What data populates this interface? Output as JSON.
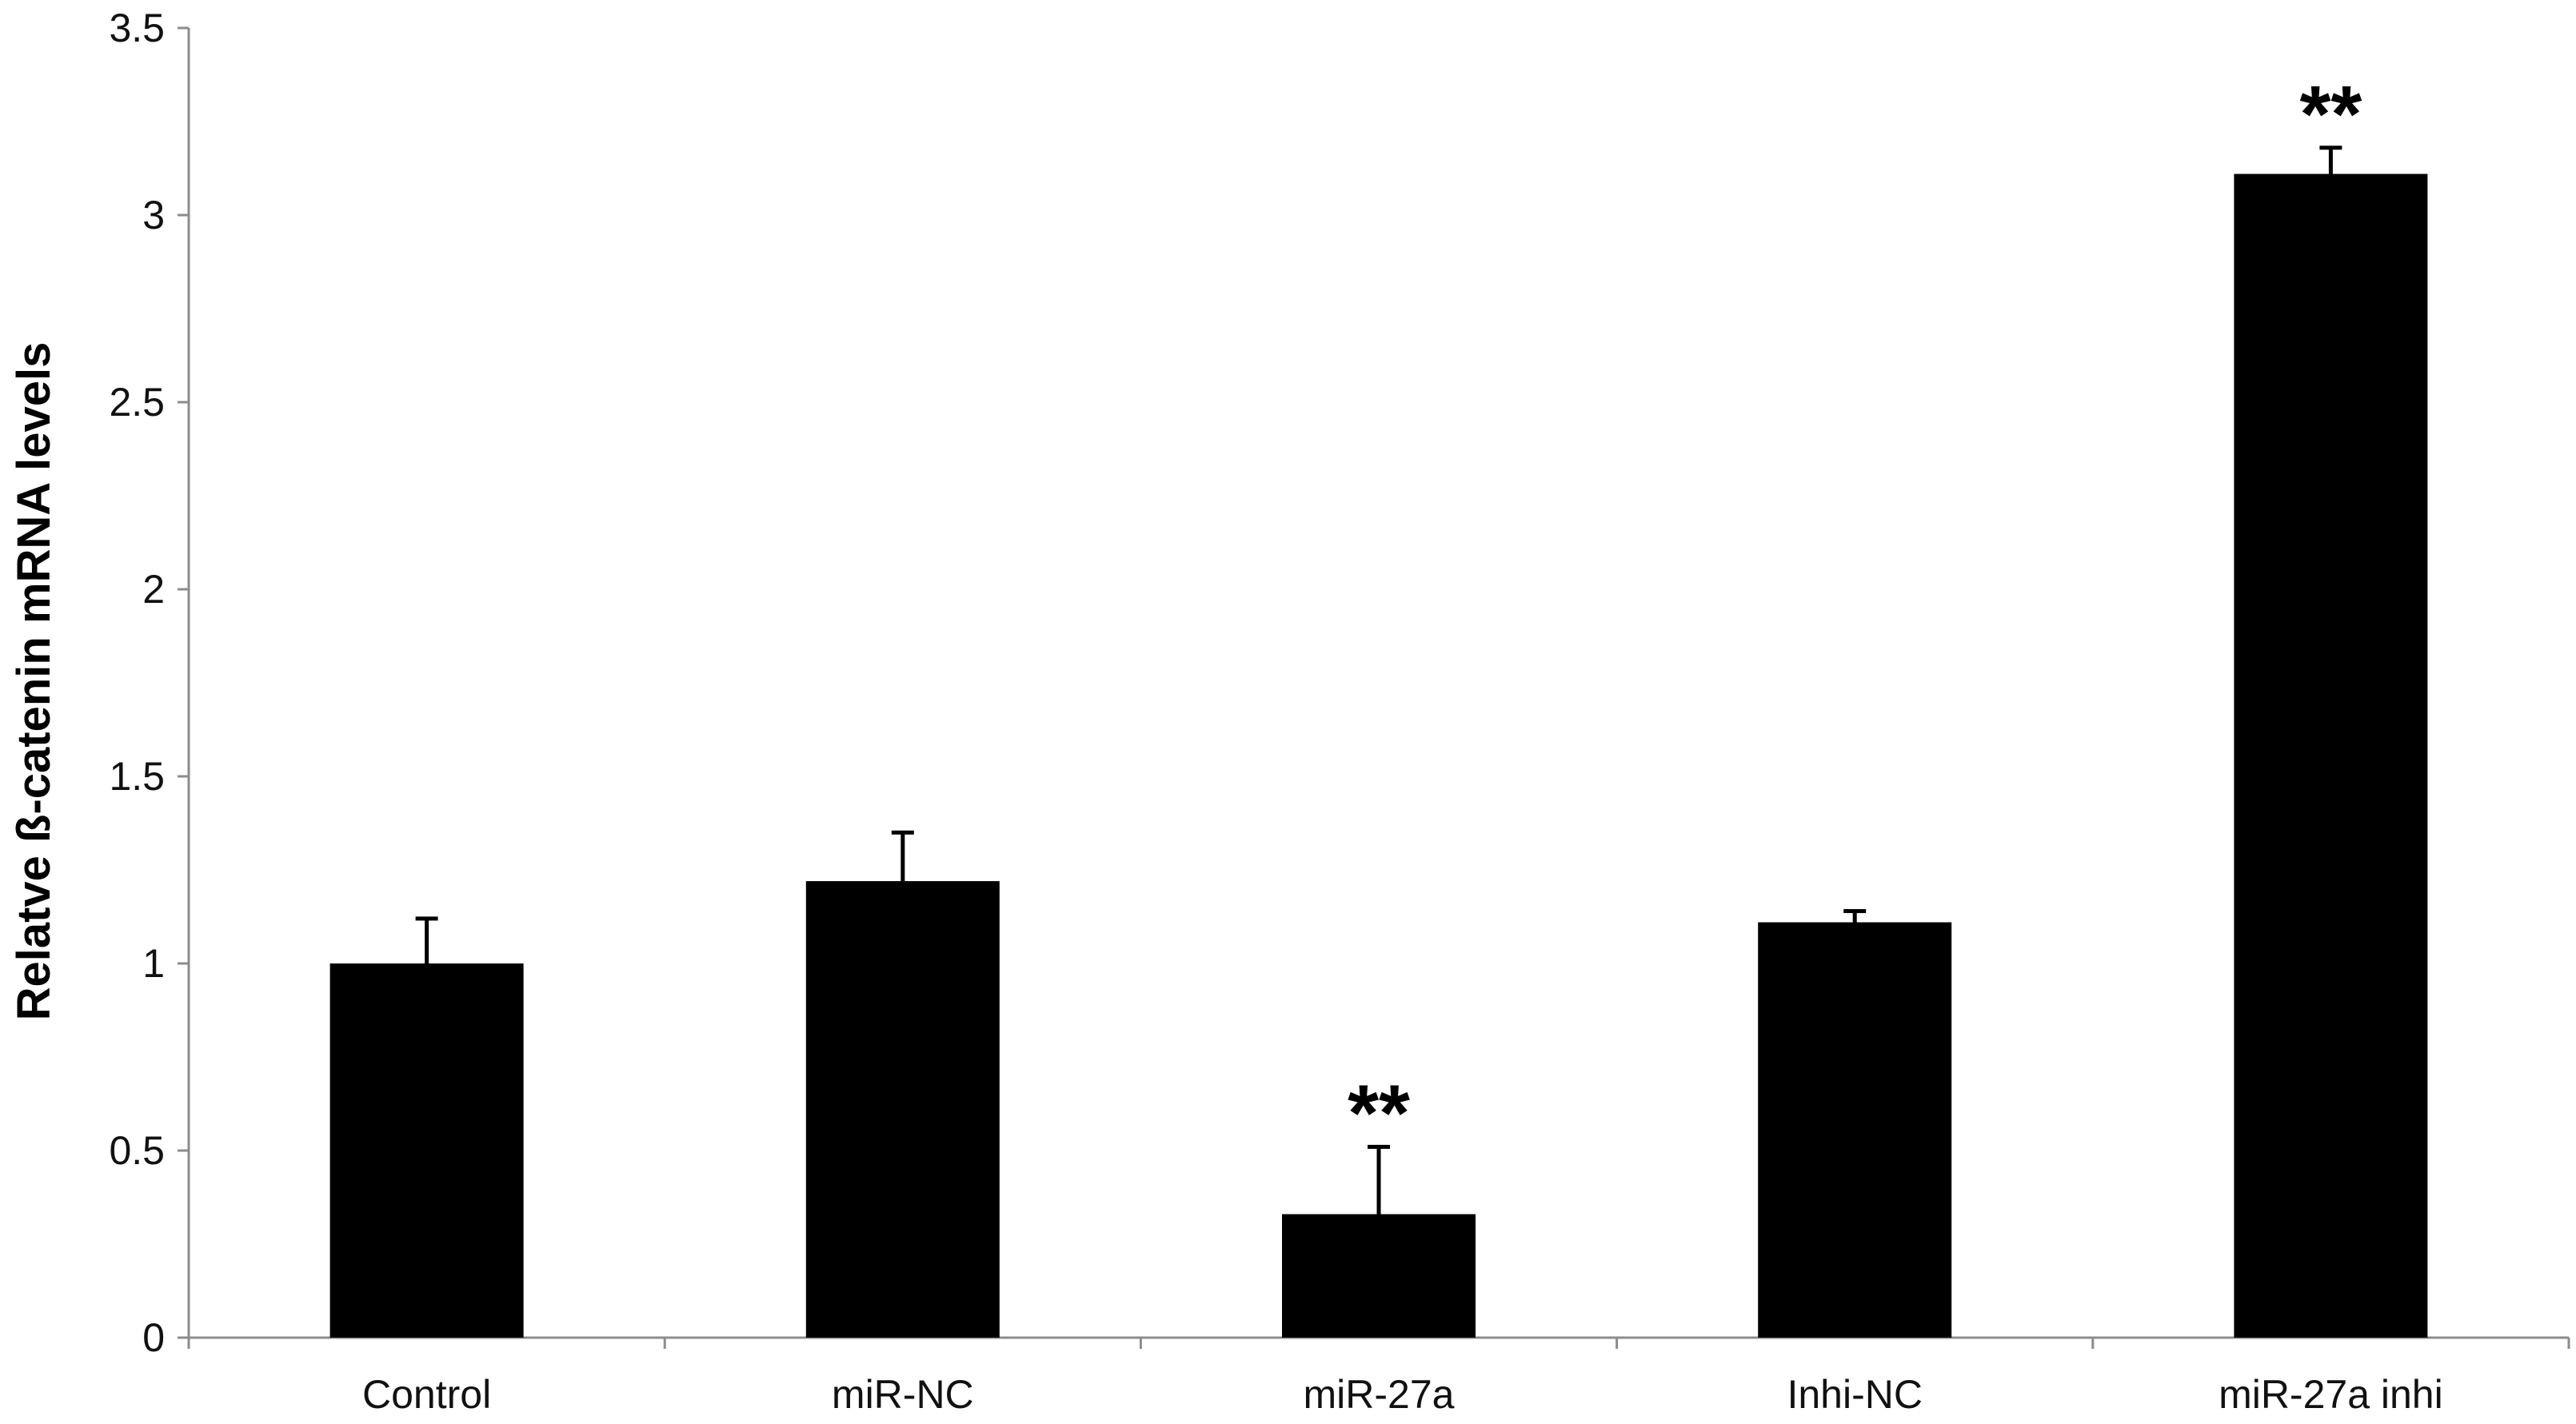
{
  "chart_data": {
    "type": "bar",
    "title": "",
    "xlabel": "",
    "ylabel": "Relatve ß-catenin mRNA levels",
    "categories": [
      "Control",
      "miR-NC",
      "miR-27a",
      "Inhi-NC",
      "miR-27a inhi"
    ],
    "series": [
      {
        "values": [
          1.0,
          1.22,
          0.33,
          1.11,
          3.11
        ],
        "error_plus": [
          0.12,
          0.13,
          0.18,
          0.03,
          0.07
        ],
        "annotations": [
          "",
          "",
          "**",
          "",
          "**"
        ]
      }
    ],
    "ylim": [
      0,
      3.5
    ],
    "yticks": [
      "0",
      "0.5",
      "1",
      "1.5",
      "2",
      "2.5",
      "3",
      "3.5"
    ],
    "grid": false,
    "legend": "none",
    "colors": {
      "bar": "#000000",
      "axis": "#8c8c8c",
      "text": "#111111"
    }
  }
}
